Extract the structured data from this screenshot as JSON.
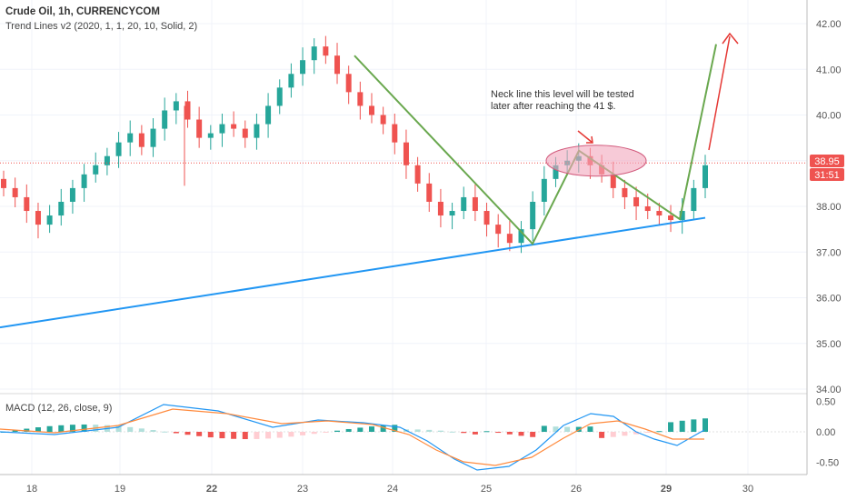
{
  "header": {
    "symbol_line": "Crude Oil, 1h, CURRENCYCOM",
    "indicator_line": "Trend Lines v2 (2020, 1, 1, 20, 10, Solid, 2)"
  },
  "price_axis": {
    "ticks": [
      "42.00",
      "41.00",
      "40.00",
      "39.00",
      "38.00",
      "37.00",
      "36.00",
      "35.00",
      "34.00"
    ],
    "last_price": "38.95",
    "countdown": "31:51"
  },
  "macd_panel": {
    "label": "MACD (12, 26, close, 9)",
    "ticks": [
      "0.50",
      "0.00",
      "-0.50"
    ]
  },
  "time_axis": {
    "ticks": [
      "18",
      "19",
      "22",
      "23",
      "24",
      "25",
      "26",
      "29",
      "30"
    ]
  },
  "annotation": {
    "line1": "Neck line this level will be tested",
    "line2": "later after reaching the 41 $."
  },
  "colors": {
    "up": "#26a69a",
    "down": "#ef5350",
    "trend_blue": "#2196f3",
    "trend_green": "#6aa84f",
    "arrow_red": "#e53935",
    "macd_line": "#2196f3",
    "signal_line": "#ff8a3d",
    "ellipse_fill": "#f2a7bd",
    "price_label_bg": "#ef5350"
  },
  "chart_data": {
    "type": "candlestick",
    "y_range": [
      34.0,
      42.0
    ],
    "x_days": [
      "18",
      "19",
      "22",
      "23",
      "24",
      "25",
      "26",
      "29",
      "30"
    ],
    "candles_close": [
      38.4,
      38.2,
      37.9,
      37.6,
      37.8,
      38.1,
      38.4,
      38.7,
      38.9,
      39.1,
      39.4,
      39.6,
      39.3,
      39.7,
      40.1,
      40.3,
      39.9,
      39.5,
      39.6,
      39.8,
      39.7,
      39.5,
      39.8,
      40.2,
      40.6,
      40.9,
      41.2,
      41.5,
      41.3,
      40.9,
      40.5,
      40.2,
      40.0,
      39.8,
      39.4,
      38.9,
      38.5,
      38.1,
      37.8,
      37.9,
      38.2,
      37.9,
      37.6,
      37.4,
      37.2,
      37.5,
      38.1,
      38.6,
      38.9,
      39.0,
      39.1,
      38.9,
      38.7,
      38.4,
      38.2,
      38.0,
      37.9,
      37.8,
      37.7,
      37.9,
      38.4,
      38.9
    ],
    "trend_lines": [
      {
        "name": "support",
        "from": [
          0,
          35.35
        ],
        "to": [
          1,
          37.72
        ]
      },
      {
        "name": "neck",
        "price": 38.95
      }
    ],
    "macd": {
      "range": [
        -0.7,
        0.6
      ]
    }
  }
}
